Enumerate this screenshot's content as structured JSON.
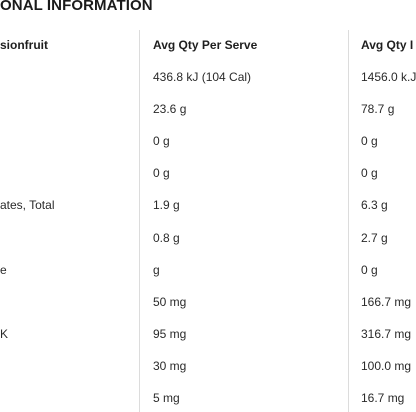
{
  "title": "ONAL INFORMATION",
  "columns": [
    "sionfruit",
    "Avg Qty Per Serve",
    "Avg Qty I"
  ],
  "rows": [
    {
      "label": "",
      "serve": "436.8 kJ (104 Cal)",
      "per100": "1456.0 k.J"
    },
    {
      "label": "",
      "serve": "23.6 g",
      "per100": "78.7 g"
    },
    {
      "label": "",
      "serve": "0 g",
      "per100": "0 g"
    },
    {
      "label": "",
      "serve": "0 g",
      "per100": "0 g"
    },
    {
      "label": "ates, Total",
      "serve": "1.9 g",
      "per100": "6.3 g"
    },
    {
      "label": "",
      "serve": "0.8 g",
      "per100": "2.7 g"
    },
    {
      "label": "e",
      "serve": "g",
      "per100": "0 g"
    },
    {
      "label": "",
      "serve": "50 mg",
      "per100": "166.7 mg"
    },
    {
      "label": "K",
      "serve": "95 mg",
      "per100": "316.7 mg"
    },
    {
      "label": "",
      "serve": "30 mg",
      "per100": "100.0 mg"
    },
    {
      "label": "",
      "serve": "5 mg",
      "per100": "16.7 mg"
    }
  ]
}
